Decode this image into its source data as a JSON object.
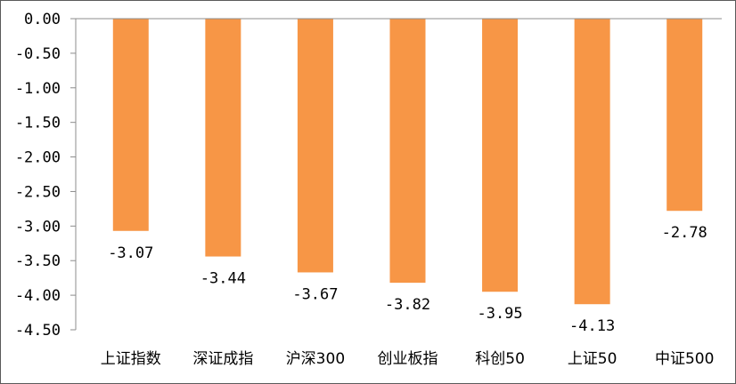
{
  "chart_data": {
    "type": "bar",
    "title": "",
    "xlabel": "",
    "ylabel": "",
    "categories": [
      "上证指数",
      "深证成指",
      "沪深300",
      "创业板指",
      "科创50",
      "上证50",
      "中证500"
    ],
    "values": [
      -3.07,
      -3.44,
      -3.67,
      -3.82,
      -3.95,
      -4.13,
      -2.78
    ],
    "data_labels": [
      "-3.07",
      "-3.44",
      "-3.67",
      "-3.82",
      "-3.95",
      "-4.13",
      "-2.78"
    ],
    "ylim": [
      -4.5,
      0
    ],
    "yticks": [
      0,
      -0.5,
      -1,
      -1.5,
      -2,
      -2.5,
      -3,
      -3.5,
      -4,
      -4.5
    ],
    "ytick_labels": [
      "0.00",
      "-0.50",
      "-1.00",
      "-1.50",
      "-2.00",
      "-2.50",
      "-3.00",
      "-3.50",
      "-4.00",
      "-4.50"
    ],
    "bar_color": "#F79646",
    "grid": false,
    "legend": "none"
  }
}
